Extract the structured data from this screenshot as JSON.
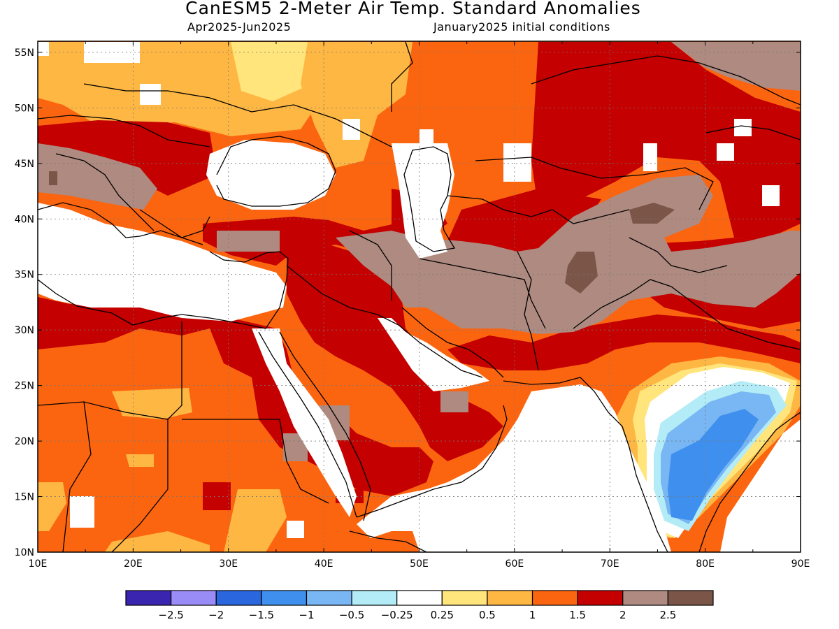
{
  "header": {
    "title": "CanESM5 2-Meter Air Temp. Standard Anomalies",
    "period": "Apr2025-Jun2025",
    "initial_conditions": "January2025 initial conditions"
  },
  "map": {
    "lon_range": [
      10,
      90
    ],
    "lat_range": [
      10,
      56
    ],
    "lon_labels": [
      "10E",
      "20E",
      "30E",
      "40E",
      "50E",
      "60E",
      "70E",
      "80E",
      "90E"
    ],
    "lat_labels": [
      "10N",
      "15N",
      "20N",
      "25N",
      "30N",
      "35N",
      "40N",
      "45N",
      "50N",
      "55N"
    ]
  },
  "colorbar": {
    "colors": [
      "#3a25b0",
      "#9a8cf7",
      "#2a66de",
      "#3f90ee",
      "#78b6f4",
      "#b3ecf6",
      "#ffffff",
      "#ffe57c",
      "#feb743",
      "#fc6510",
      "#c40000",
      "#ae8a80",
      "#7b5547"
    ],
    "labels": [
      "-2.5",
      "-2",
      "-1.5",
      "-1",
      "-0.5",
      "-0.25",
      "0.25",
      "0.5",
      "1",
      "1.5",
      "2",
      "2.5"
    ]
  }
}
